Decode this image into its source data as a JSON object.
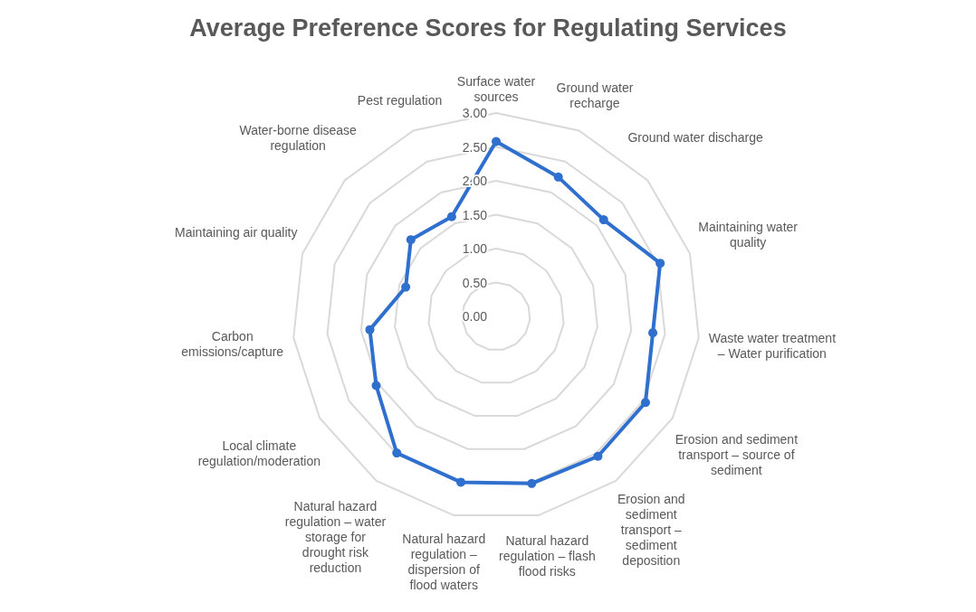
{
  "chart_data": {
    "type": "radar",
    "title": "Average Preference Scores for Regulating Services",
    "categories": [
      "Surface water sources",
      "Ground water recharge",
      "Ground water discharge",
      "Maintaining water quality",
      "Waste water treatment – Water purification",
      "Erosion and sediment transport – source of sediment",
      "Erosion and sediment transport – sediment deposition",
      "Natural hazard regulation – flash flood risks",
      "Natural hazard regulation – dispersion of flood waters",
      "Natural hazard regulation – water storage for drought risk reduction",
      "Local climate regulation/moderation",
      "Carbon emissions/capture",
      "Maintaining air quality",
      "Water-borne disease regulation",
      "Pest regulation"
    ],
    "series": [
      {
        "color": "#2f6fce",
        "values": [
          2.58,
          2.25,
          2.13,
          2.54,
          2.32,
          2.54,
          2.55,
          2.52,
          2.5,
          2.49,
          2.04,
          1.87,
          1.4,
          1.69,
          1.61
        ]
      }
    ],
    "ylim": [
      0,
      3
    ],
    "yticks": [
      {
        "value": 0,
        "label": "0.00"
      },
      {
        "value": 0.5,
        "label": "0.50"
      },
      {
        "value": 1,
        "label": "1.00"
      },
      {
        "value": 1.5,
        "label": "1.50"
      },
      {
        "value": 2,
        "label": "2.00"
      },
      {
        "value": 2.5,
        "label": "2.50"
      },
      {
        "value": 3,
        "label": "3.00"
      }
    ],
    "grid": true,
    "marker": "circle",
    "line_style": "solid"
  }
}
